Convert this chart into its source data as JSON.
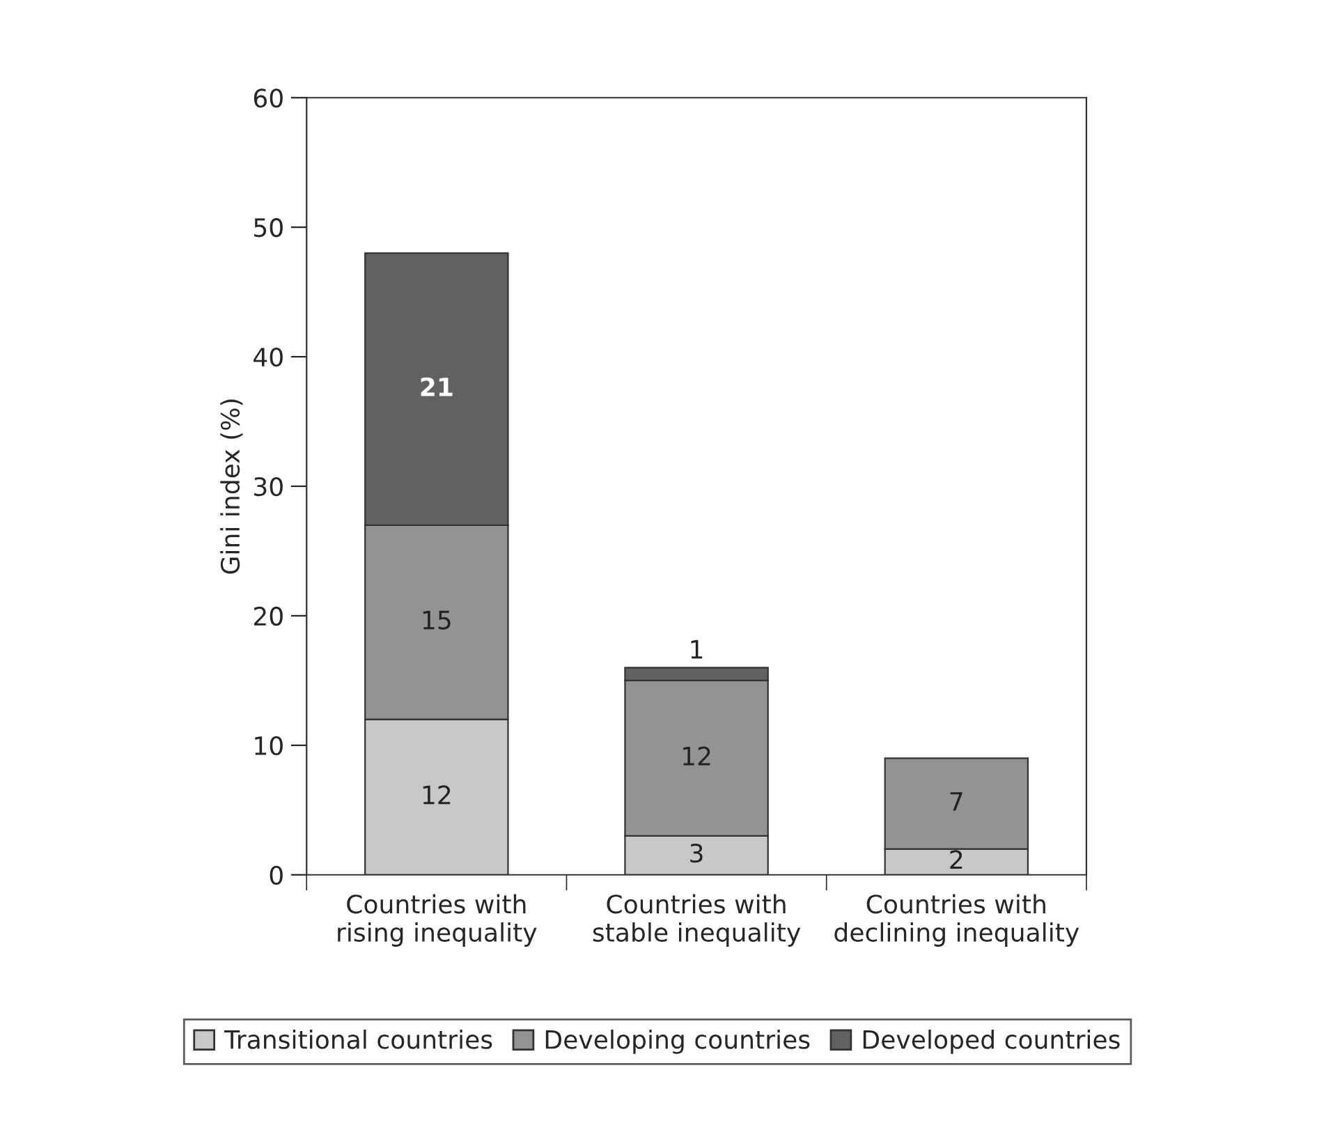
{
  "chart_data": {
    "type": "bar",
    "stacked": true,
    "ylabel": "Gini index (%)",
    "categories": [
      "Countries with\nrising inequality",
      "Countries with\nstable inequality",
      "Countries with\ndeclining inequality"
    ],
    "series": [
      {
        "name": "Transitional countries",
        "color": "#c8c8c8",
        "values": [
          12,
          3,
          2
        ]
      },
      {
        "name": "Developing countries",
        "color": "#939393",
        "values": [
          15,
          12,
          7
        ]
      },
      {
        "name": "Developed countries",
        "color": "#616161",
        "values": [
          21,
          1,
          null
        ]
      }
    ],
    "ylim": [
      0,
      60
    ],
    "yticks": [
      0,
      10,
      20,
      30,
      40,
      50,
      60
    ],
    "data_labels": true,
    "legend": "bottom",
    "grid": false
  }
}
